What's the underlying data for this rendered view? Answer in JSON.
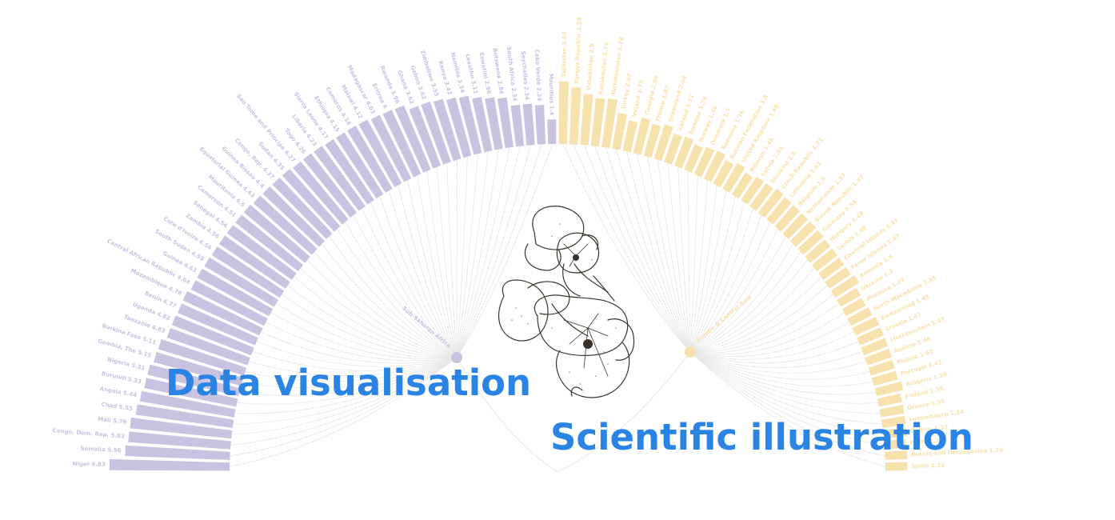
{
  "headlines": {
    "data_visualisation": "Data visualisation",
    "scientific_illustration": "Scientific illustration"
  },
  "colors": {
    "headline": "#2a84e4",
    "group_a": "#c9c2e0",
    "group_b": "#f7e2ad",
    "links": "#e6e6e6"
  },
  "chart_data": {
    "type": "bar",
    "layout": "radial-half-circle",
    "groups": [
      {
        "label": "Sub-Saharan Africa",
        "color": "#c9c2e0",
        "items": [
          "Niger 6.83",
          "Somalia 5.96",
          "Congo, Dem. Rep. 5.82",
          "Mali 5.79",
          "Chad 5.55",
          "Angola 5.44",
          "Burundi 5.33",
          "Nigeria 5.31",
          "Gambia, The 5.15",
          "Burkina Faso 5.11",
          "Tanzania 4.83",
          "Uganda 4.82",
          "Benin 4.77",
          "Mozambique 4.78",
          "Central African Republic 4.64",
          "Guinea 4.63",
          "South Sudan 4.59",
          "Cote d'Ivoire 4.56",
          "Zambia 4.56",
          "Senegal 4.54",
          "Cameroon 4.51",
          "Mauritania 4.5",
          "Equatorial Guinea 4.43",
          "Guinea-Bissau 4.4",
          "Congo, Rep. 4.37",
          "Sudan 4.35",
          "Sao Tome and Principe 4.27",
          "Togo 4.26",
          "Liberia 4.23",
          "Sierra Leone 4.17",
          "Ethiopia 4.15",
          "Comoros 4.14",
          "Malawi 4.12",
          "Madagascar 4.03",
          "Eritrea 4",
          "Rwanda 3.96",
          "Ghana 3.62",
          "Gabon 3.62",
          "Zimbabwe 3.55",
          "Kenya 3.42",
          "Namibia 3.34",
          "Lesotho 3.11",
          "Eswatini 2.96",
          "Botswana 2.84",
          "South Africa 2.34",
          "Seychelles 2.34",
          "Cabo Verde 2.24",
          "Mauritius 1.4"
        ]
      },
      {
        "label": "Europe & Central Asia",
        "color": "#f7e2ad",
        "items": [
          "Tajikistan 3.56",
          "Kyrgyz Republic 3.24",
          "Uzbekistan 2.9",
          "Kazakhstan 2.73",
          "Turkmenistan 2.78",
          "Turkey 2.07",
          "Ireland 1.75",
          "Georgia 2.06",
          "France 1.87",
          "Greenland 2.04",
          "Iceland 1.71",
          "Sweden 1.76",
          "Norway 1.56",
          "Denmark 1.7",
          "Romania 1.76",
          "Russian Federation 1.5",
          "United Kingdom 1.68",
          "Belarus 1.45",
          "Latvia 1.61",
          "Slovenia 1.6",
          "Czech Republic 1.71",
          "Lithuania 1.63",
          "Belgium 1.6",
          "Netherlands 1.57",
          "Slovak Republic 1.57",
          "Germany 1.54",
          "Hungary 1.49",
          "Serbia 1.48",
          "Channel Islands 1.47",
          "Faroe Islands 1.47",
          "Armenia 1.6",
          "Ukraine 1.3",
          "Moldova 1.27",
          "North Macedonia 1.35",
          "Switzerland 1.48",
          "Croatia 1.47",
          "Liechtenstein 1.47",
          "Austria 1.46",
          "Poland 1.42",
          "Portugal 1.42",
          "Bulgaria 1.56",
          "Finland 1.35",
          "Greece 1.35",
          "Luxembourg 1.34",
          "Cyprus 1.33",
          "Malta 1.23",
          "Bosnia and Herzegovina 1.25",
          "Spain 1.24"
        ]
      }
    ]
  }
}
